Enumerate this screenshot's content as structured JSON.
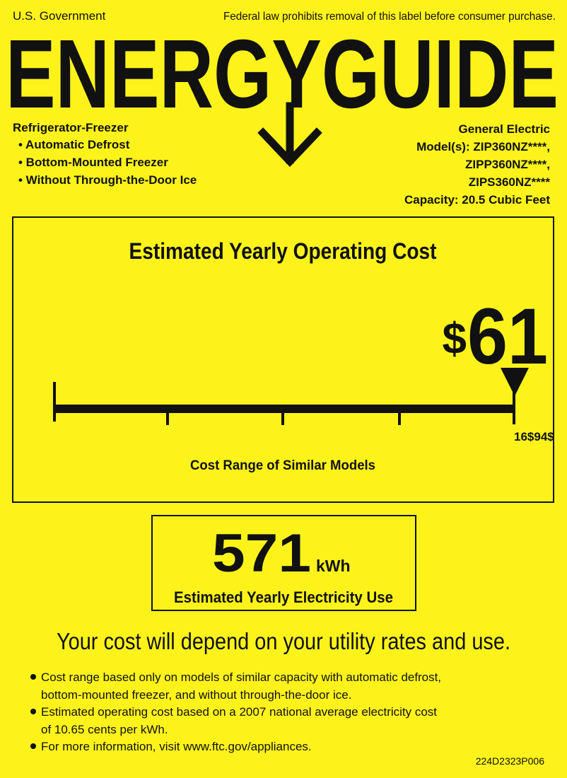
{
  "header": {
    "government": "U.S. Government",
    "notice": "Federal law prohibits removal of this label before consumer purchase.",
    "title": "ENERGYGUIDE"
  },
  "product": {
    "type": "Refrigerator-Freezer",
    "features": [
      "• Automatic Defrost",
      "• Bottom-Mounted Freezer",
      "• Without Through-the-Door Ice"
    ]
  },
  "manufacturer": {
    "lines": [
      "General Electric",
      "Model(s): ZIP360NZ****,",
      "ZIPP360NZ****,",
      "ZIPS360NZ****",
      "Capacity: 20.5 Cubic Feet"
    ]
  },
  "cost": {
    "heading": "Estimated Yearly Operating Cost",
    "symbol": "$",
    "amount": "61",
    "range_label": "16$94$",
    "caption": "Cost Range of Similar Models"
  },
  "electricity": {
    "value": "571",
    "unit": "kWh",
    "caption": "Estimated Yearly Electricity Use"
  },
  "tagline": "Your cost will depend on your utility rates and use.",
  "notes": [
    [
      "Cost range based only on models of similar capacity with automatic defrost,",
      "bottom-mounted freezer, and without through-the-door ice."
    ],
    [
      "Estimated operating cost based on a 2007 national average electricity cost",
      "of 10.65 cents per kWh."
    ],
    [
      "For more information, visit www.ftc.gov/appliances."
    ]
  ],
  "code": "224D2323P006"
}
